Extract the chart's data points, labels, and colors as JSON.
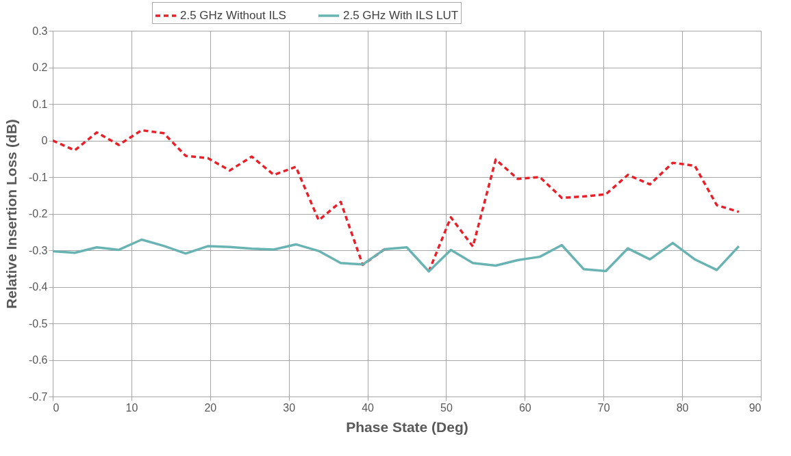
{
  "chart_data": {
    "type": "line",
    "xlabel": "Phase State (Deg)",
    "ylabel": "Relative Insertion Loss (dB)",
    "x": [
      0,
      2.8,
      5.6,
      8.4,
      11.3,
      14.1,
      16.9,
      19.7,
      22.5,
      25.3,
      28.1,
      30.9,
      33.8,
      36.6,
      39.4,
      42.2,
      45,
      47.8,
      50.6,
      53.4,
      56.3,
      59.1,
      61.9,
      64.7,
      67.5,
      70.3,
      73.1,
      75.9,
      78.8,
      81.6,
      84.4,
      87.2
    ],
    "series": [
      {
        "name": "2.5 GHz Without ILS",
        "color": "#e8202a",
        "line_style": "dashed",
        "values": [
          0,
          -0.027,
          0.022,
          -0.012,
          0.028,
          0.02,
          -0.042,
          -0.048,
          -0.082,
          -0.044,
          -0.094,
          -0.072,
          -0.218,
          -0.168,
          -0.34,
          -0.297,
          null,
          -0.358,
          -0.21,
          -0.29,
          -0.052,
          -0.105,
          -0.1,
          -0.157,
          -0.153,
          -0.147,
          -0.094,
          -0.12,
          -0.061,
          -0.069,
          -0.177,
          -0.195
        ]
      },
      {
        "name": "2.5 GHz With ILS LUT",
        "color": "#69b3b3",
        "line_style": "solid",
        "values": [
          -0.303,
          -0.307,
          -0.292,
          -0.299,
          -0.271,
          -0.288,
          -0.309,
          -0.289,
          -0.291,
          -0.296,
          -0.298,
          -0.284,
          -0.302,
          -0.335,
          -0.339,
          -0.297,
          -0.292,
          -0.358,
          -0.299,
          -0.335,
          -0.342,
          -0.327,
          -0.318,
          -0.286,
          -0.352,
          -0.357,
          -0.295,
          -0.325,
          -0.28,
          -0.325,
          -0.354,
          -0.289
        ]
      }
    ],
    "xlim": [
      0,
      90
    ],
    "xticks": [
      0,
      10,
      20,
      30,
      40,
      50,
      60,
      70,
      80,
      90
    ],
    "ylim": [
      -0.7,
      0.3
    ],
    "yticks": [
      -0.7,
      -0.6,
      -0.5,
      -0.4,
      -0.3,
      -0.2,
      -0.1,
      0,
      0.1,
      0.2,
      0.3
    ],
    "grid": true,
    "legend": "top",
    "marker": "none"
  }
}
